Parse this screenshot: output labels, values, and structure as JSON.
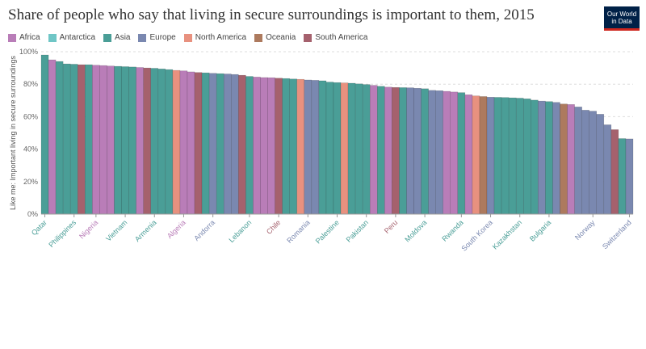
{
  "header": {
    "title": "Share of people who say that living in secure surroundings is important to them, 2015",
    "logo_line1": "Our World",
    "logo_line2": "in Data"
  },
  "colors": {
    "Africa": "#b97db8",
    "Antarctica": "#6fc6c6",
    "Asia": "#4a9e97",
    "Europe": "#7a88b0",
    "North America": "#e8917f",
    "Oceania": "#ad7a5e",
    "South America": "#a5616d"
  },
  "chart_data": {
    "type": "bar",
    "ylabel": "Like me: Important living in secure surroundings",
    "ylim": [
      0,
      100
    ],
    "yticks": [
      "0%",
      "20%",
      "40%",
      "60%",
      "80%",
      "100%"
    ],
    "legend": [
      {
        "name": "Africa"
      },
      {
        "name": "Antarctica"
      },
      {
        "name": "Asia"
      },
      {
        "name": "Europe"
      },
      {
        "name": "North America"
      },
      {
        "name": "Oceania"
      },
      {
        "name": "South America"
      }
    ],
    "bars": [
      {
        "category": "Qatar",
        "value": 98,
        "continent": "Asia",
        "labeled": true
      },
      {
        "value": 95,
        "continent": "Africa"
      },
      {
        "value": 94,
        "continent": "Asia"
      },
      {
        "value": 92.5,
        "continent": "Asia"
      },
      {
        "category": "Philippines",
        "value": 92.3,
        "continent": "Asia",
        "labeled": true
      },
      {
        "value": 92,
        "continent": "South America"
      },
      {
        "value": 92,
        "continent": "Asia"
      },
      {
        "category": "Nigeria",
        "value": 91.7,
        "continent": "Africa",
        "labeled": true
      },
      {
        "value": 91.5,
        "continent": "Africa"
      },
      {
        "value": 91.2,
        "continent": "Africa"
      },
      {
        "value": 91,
        "continent": "Asia"
      },
      {
        "category": "Vietnam",
        "value": 90.8,
        "continent": "Asia",
        "labeled": true
      },
      {
        "value": 90.6,
        "continent": "Asia"
      },
      {
        "value": 90.3,
        "continent": "Africa"
      },
      {
        "value": 90,
        "continent": "South America"
      },
      {
        "category": "Armenia",
        "value": 89.8,
        "continent": "Asia",
        "labeled": true
      },
      {
        "value": 89.4,
        "continent": "Asia"
      },
      {
        "value": 89,
        "continent": "Asia"
      },
      {
        "value": 88.5,
        "continent": "North America"
      },
      {
        "category": "Algeria",
        "value": 88.2,
        "continent": "Africa",
        "labeled": true
      },
      {
        "value": 87.6,
        "continent": "Africa"
      },
      {
        "value": 87.2,
        "continent": "South America"
      },
      {
        "value": 87,
        "continent": "Asia"
      },
      {
        "category": "Andorra",
        "value": 86.7,
        "continent": "Europe",
        "labeled": true
      },
      {
        "value": 86.5,
        "continent": "Asia"
      },
      {
        "value": 86.3,
        "continent": "Europe"
      },
      {
        "value": 86,
        "continent": "Europe"
      },
      {
        "value": 85.5,
        "continent": "South America"
      },
      {
        "category": "Lebanon",
        "value": 84.8,
        "continent": "Asia",
        "labeled": true
      },
      {
        "value": 84.4,
        "continent": "Africa"
      },
      {
        "value": 84.1,
        "continent": "Africa"
      },
      {
        "value": 84,
        "continent": "Africa"
      },
      {
        "category": "Chile",
        "value": 83.7,
        "continent": "South America",
        "labeled": true
      },
      {
        "value": 83.5,
        "continent": "Asia"
      },
      {
        "value": 83.2,
        "continent": "Asia"
      },
      {
        "value": 83,
        "continent": "North America"
      },
      {
        "category": "Romania",
        "value": 82.6,
        "continent": "Europe",
        "labeled": true
      },
      {
        "value": 82.4,
        "continent": "Europe"
      },
      {
        "value": 82.1,
        "continent": "Asia"
      },
      {
        "value": 81.3,
        "continent": "Asia"
      },
      {
        "category": "Palestine",
        "value": 81,
        "continent": "Asia",
        "labeled": true
      },
      {
        "value": 80.8,
        "continent": "North America"
      },
      {
        "value": 80.6,
        "continent": "Asia"
      },
      {
        "value": 80.2,
        "continent": "Asia"
      },
      {
        "category": "Pakistan",
        "value": 79.8,
        "continent": "Asia",
        "labeled": true
      },
      {
        "value": 79.3,
        "continent": "Africa"
      },
      {
        "value": 78.7,
        "continent": "Asia"
      },
      {
        "value": 78.2,
        "continent": "Africa"
      },
      {
        "category": "Peru",
        "value": 78,
        "continent": "South America",
        "labeled": true
      },
      {
        "value": 77.9,
        "continent": "Asia"
      },
      {
        "value": 77.8,
        "continent": "Europe"
      },
      {
        "value": 77.5,
        "continent": "Europe"
      },
      {
        "category": "Moldova",
        "value": 77.2,
        "continent": "Asia",
        "labeled": true
      },
      {
        "value": 76.2,
        "continent": "Europe"
      },
      {
        "value": 76,
        "continent": "Europe"
      },
      {
        "value": 75.6,
        "continent": "Africa"
      },
      {
        "value": 75.2,
        "continent": "Africa"
      },
      {
        "category": "Rwanda",
        "value": 74.8,
        "continent": "Asia",
        "labeled": true
      },
      {
        "value": 73.5,
        "continent": "Africa"
      },
      {
        "value": 72.8,
        "continent": "North America"
      },
      {
        "value": 72.4,
        "continent": "Oceania"
      },
      {
        "category": "South Korea",
        "value": 72,
        "continent": "Europe",
        "labeled": true
      },
      {
        "value": 71.9,
        "continent": "Asia"
      },
      {
        "value": 71.8,
        "continent": "Asia"
      },
      {
        "value": 71.6,
        "continent": "Asia"
      },
      {
        "category": "Kazakhstan",
        "value": 71.4,
        "continent": "Asia",
        "labeled": true
      },
      {
        "value": 71,
        "continent": "Asia"
      },
      {
        "value": 70.2,
        "continent": "Asia"
      },
      {
        "value": 69.6,
        "continent": "Europe"
      },
      {
        "category": "Bulgaria",
        "value": 69.3,
        "continent": "Asia",
        "labeled": true
      },
      {
        "value": 68.8,
        "continent": "Europe"
      },
      {
        "value": 67.8,
        "continent": "Oceania"
      },
      {
        "value": 67.5,
        "continent": "Africa"
      },
      {
        "value": 66,
        "continent": "Europe"
      },
      {
        "value": 64,
        "continent": "Europe"
      },
      {
        "category": "Norway",
        "value": 63.4,
        "continent": "Europe",
        "labeled": true
      },
      {
        "value": 61.5,
        "continent": "Europe"
      },
      {
        "value": 55,
        "continent": "Europe"
      },
      {
        "value": 52,
        "continent": "South America"
      },
      {
        "value": 46.5,
        "continent": "Asia"
      },
      {
        "category": "Switzerland",
        "value": 46.3,
        "continent": "Europe",
        "labeled": true
      }
    ]
  }
}
